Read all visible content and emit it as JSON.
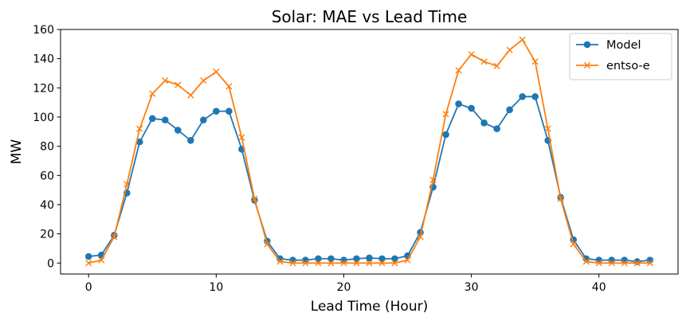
{
  "chart_data": {
    "type": "line",
    "title": "Solar: MAE vs Lead Time",
    "xlabel": "Lead Time (Hour)",
    "ylabel": "MW",
    "xlim": [
      -2.2,
      46.2
    ],
    "ylim": [
      -7.5,
      160
    ],
    "xticks": [
      0,
      10,
      20,
      30,
      40
    ],
    "yticks": [
      0,
      20,
      40,
      60,
      80,
      100,
      120,
      140,
      160
    ],
    "legend_position": "top-right",
    "x": [
      0,
      1,
      2,
      3,
      4,
      5,
      6,
      7,
      8,
      9,
      10,
      11,
      12,
      13,
      14,
      15,
      16,
      17,
      18,
      19,
      20,
      21,
      22,
      23,
      24,
      25,
      26,
      27,
      28,
      29,
      30,
      31,
      32,
      33,
      34,
      35,
      36,
      37,
      38,
      39,
      40,
      41,
      42,
      43,
      44
    ],
    "series": [
      {
        "name": "Model",
        "color": "#1f77b4",
        "marker": "circle",
        "values": [
          4.5,
          5.5,
          19,
          48,
          83,
          99,
          98,
          91,
          84,
          98,
          104,
          104,
          78,
          43,
          15,
          3,
          2,
          2,
          3,
          3,
          2,
          3,
          3.5,
          3,
          3,
          5,
          21,
          52,
          88,
          109,
          106,
          96,
          92,
          105,
          114,
          114,
          84,
          45,
          16,
          3,
          2,
          2,
          2,
          1,
          2
        ]
      },
      {
        "name": "entso-e",
        "color": "#ff7f0e",
        "marker": "x",
        "values": [
          0,
          2,
          18,
          54,
          92,
          116,
          125,
          122,
          115,
          125,
          131,
          121,
          86,
          44,
          13,
          1,
          0,
          0,
          0,
          0,
          0,
          0,
          0,
          0,
          0,
          2,
          18,
          57,
          102,
          132,
          143,
          138,
          135,
          146,
          153,
          138,
          92,
          44,
          13,
          1,
          0,
          0,
          0,
          0,
          0
        ]
      }
    ]
  }
}
